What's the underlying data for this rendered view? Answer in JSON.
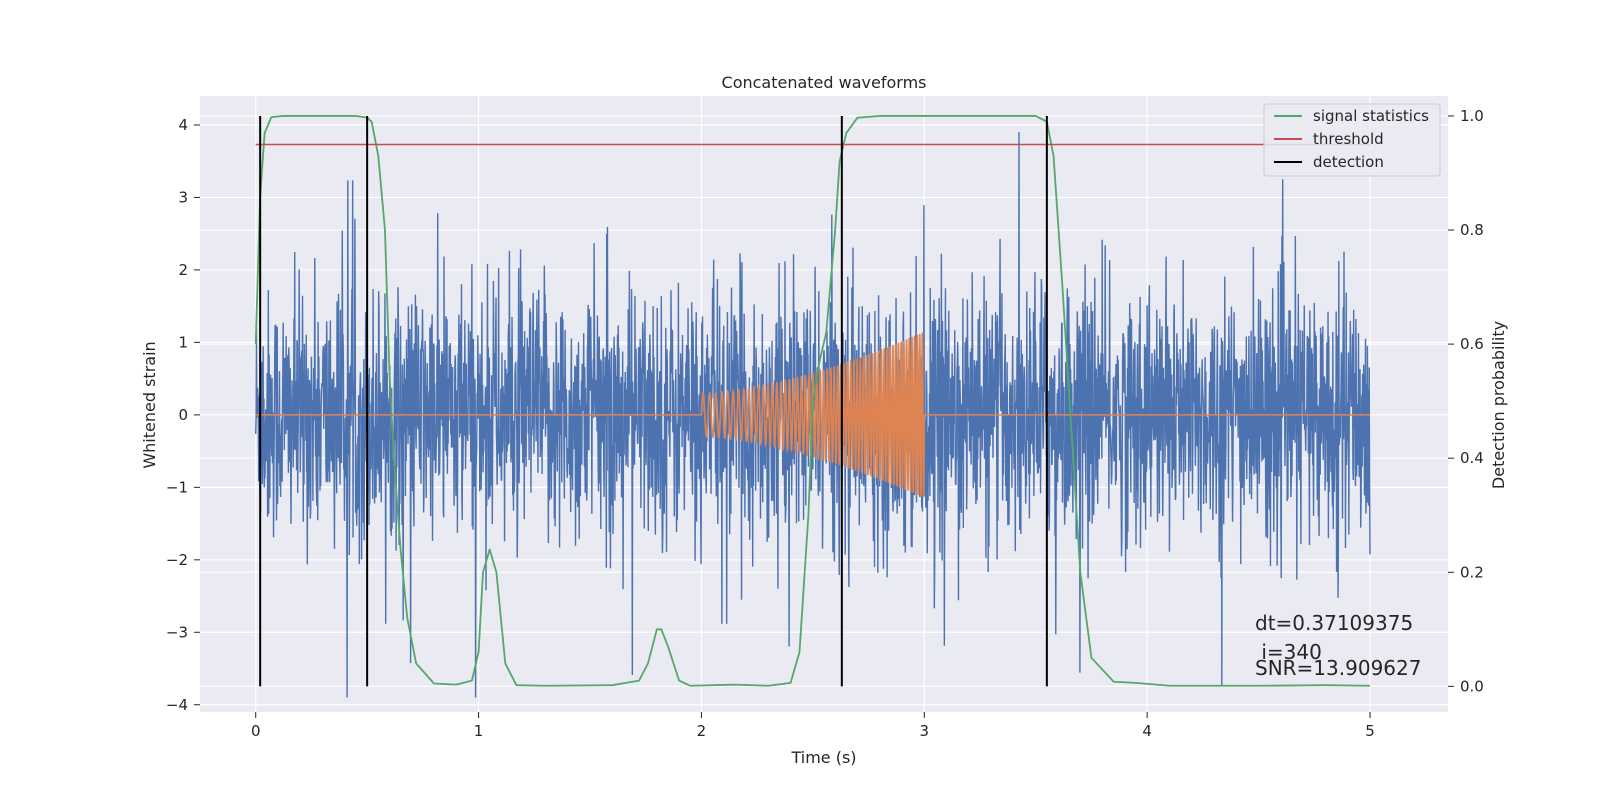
{
  "chart_data": {
    "type": "line",
    "title": "Concatenated waveforms",
    "xlabel": "Time (s)",
    "ylabel": "Whitened strain",
    "y2label": "Detection probability",
    "xlim": [
      -0.25,
      5.35
    ],
    "ylim": [
      -4.1,
      4.4
    ],
    "y2lim": [
      -0.045,
      1.035
    ],
    "grid": true,
    "legend_position": "top-right",
    "x_ticks": [
      "0",
      "1",
      "2",
      "3",
      "4",
      "5"
    ],
    "y_ticks": [
      "−4",
      "−3",
      "−2",
      "−1",
      "0",
      "1",
      "2",
      "3",
      "4"
    ],
    "y2_ticks": [
      "0.0",
      "0.2",
      "0.4",
      "0.6",
      "0.8",
      "1.0"
    ],
    "series": [
      {
        "name": "",
        "axis": "left",
        "color": "#4c72b0",
        "kind": "noise",
        "x_range": [
          0,
          5
        ],
        "std": 0.85,
        "peak_abs": 3.9
      },
      {
        "name": "",
        "axis": "left",
        "color": "#dd8452",
        "kind": "chirp",
        "x_range": [
          2.0,
          3.0
        ],
        "amplitude_start": 0.3,
        "amplitude_end": 1.15,
        "cycles": 60
      },
      {
        "name": "signal statistics",
        "axis": "right",
        "color": "#55a868",
        "x": [
          0,
          0.02,
          0.04,
          0.07,
          0.12,
          0.3,
          0.45,
          0.5,
          0.52,
          0.55,
          0.58,
          0.6,
          0.62,
          0.65,
          0.68,
          0.72,
          0.8,
          0.9,
          0.97,
          1.0,
          1.02,
          1.05,
          1.08,
          1.12,
          1.17,
          1.3,
          1.6,
          1.72,
          1.76,
          1.8,
          1.82,
          1.85,
          1.9,
          1.95,
          2.05,
          2.15,
          2.3,
          2.4,
          2.44,
          2.48,
          2.5,
          2.53,
          2.56,
          2.6,
          2.62,
          2.65,
          2.7,
          2.8,
          3.0,
          3.4,
          3.5,
          3.55,
          3.58,
          3.62,
          3.66,
          3.7,
          3.75,
          3.85,
          3.95,
          4.1,
          4.5,
          4.8,
          5.0
        ],
        "y": [
          0.6,
          0.86,
          0.97,
          0.998,
          1.0,
          1.0,
          1.0,
          0.997,
          0.99,
          0.93,
          0.8,
          0.55,
          0.4,
          0.24,
          0.12,
          0.04,
          0.005,
          0.003,
          0.01,
          0.06,
          0.2,
          0.24,
          0.2,
          0.04,
          0.002,
          0.001,
          0.002,
          0.01,
          0.04,
          0.1,
          0.1,
          0.07,
          0.01,
          0.001,
          0.002,
          0.003,
          0.001,
          0.006,
          0.06,
          0.3,
          0.5,
          0.57,
          0.62,
          0.8,
          0.92,
          0.97,
          0.997,
          1.0,
          1.0,
          1.0,
          1.0,
          0.99,
          0.93,
          0.7,
          0.45,
          0.2,
          0.05,
          0.008,
          0.006,
          0.001,
          0.001,
          0.002,
          0.001
        ]
      },
      {
        "name": "threshold",
        "axis": "right",
        "color": "#c44e52",
        "x": [
          0,
          5
        ],
        "y": [
          0.95,
          0.95
        ]
      },
      {
        "name": "detection",
        "axis": "right",
        "color": "#000000",
        "vlines": [
          0.02,
          0.5,
          2.63,
          3.55
        ],
        "ymin": 0.0,
        "ymax": 1.0
      }
    ],
    "annotations": {
      "dt": "dt=0.37109375",
      "i": " i=340",
      "snr": "SNR=13.909627"
    }
  },
  "colors": {
    "plot_background": "#eaeaf2",
    "grid": "#ffffff",
    "text": "#262626"
  }
}
